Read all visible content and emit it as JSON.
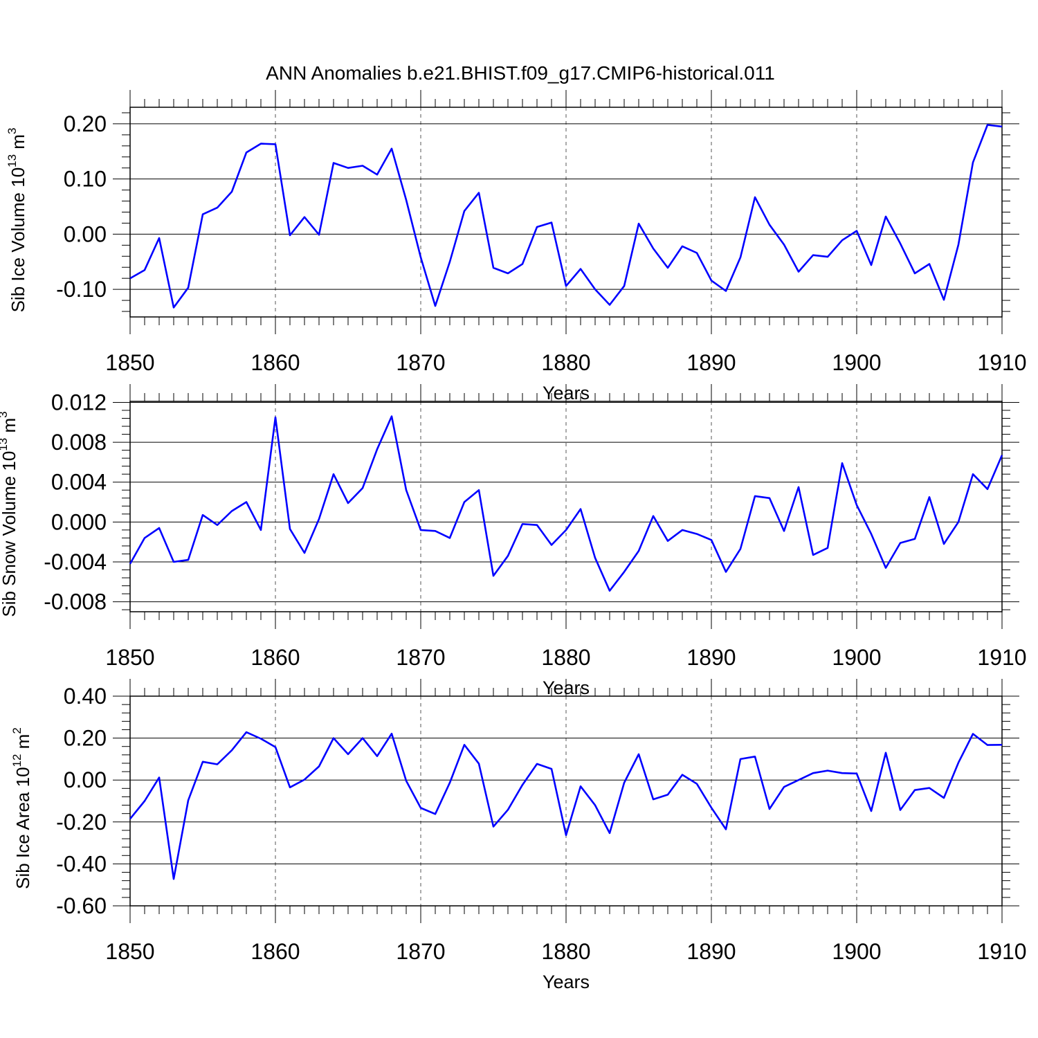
{
  "title": "ANN Anomalies b.e21.BHIST.f09_g17.CMIP6-historical.011",
  "chart_data": [
    {
      "type": "line",
      "ylabel": "Sib Ice Volume 10",
      "ylabel_exp": "13",
      "ylabel_unit": " m",
      "ylabel_unit_exp": "3",
      "xlabel": "Years",
      "xlim": [
        1850,
        1910
      ],
      "ylim": [
        -0.15,
        0.23
      ],
      "yticks": [
        -0.1,
        0.0,
        0.1,
        0.2
      ],
      "ytick_labels": [
        "-0.10",
        "0.00",
        "0.10",
        "0.20"
      ],
      "xticks": [
        1850,
        1860,
        1870,
        1880,
        1890,
        1900,
        1910
      ],
      "xtick_labels": [
        "1850",
        "1860",
        "1870",
        "1880",
        "1890",
        "1900",
        "1910"
      ],
      "grid": "dashed vertical at major x ticks",
      "color": "#0000ff",
      "x": [
        1850,
        1851,
        1852,
        1853,
        1854,
        1855,
        1856,
        1857,
        1858,
        1859,
        1860,
        1861,
        1862,
        1863,
        1864,
        1865,
        1866,
        1867,
        1868,
        1869,
        1870,
        1871,
        1872,
        1873,
        1874,
        1875,
        1876,
        1877,
        1878,
        1879,
        1880,
        1881,
        1882,
        1883,
        1884,
        1885,
        1886,
        1887,
        1888,
        1889,
        1890,
        1891,
        1892,
        1893,
        1894,
        1895,
        1896,
        1897,
        1898,
        1899,
        1900,
        1901,
        1902,
        1903,
        1904,
        1905,
        1906,
        1907,
        1908,
        1909,
        1910
      ],
      "values": [
        -0.08,
        -0.065,
        -0.007,
        -0.133,
        -0.097,
        0.036,
        0.048,
        0.077,
        0.148,
        0.164,
        0.163,
        -0.002,
        0.031,
        -0.001,
        0.129,
        0.12,
        0.124,
        0.108,
        0.155,
        0.062,
        -0.042,
        -0.13,
        -0.05,
        0.042,
        0.075,
        -0.061,
        -0.071,
        -0.054,
        0.013,
        0.021,
        -0.094,
        -0.063,
        -0.1,
        -0.128,
        -0.094,
        0.019,
        -0.026,
        -0.061,
        -0.022,
        -0.034,
        -0.084,
        -0.103,
        -0.042,
        0.067,
        0.017,
        -0.019,
        -0.068,
        -0.038,
        -0.041,
        -0.011,
        0.006,
        -0.056,
        0.032,
        -0.017,
        -0.071,
        -0.054,
        -0.119,
        -0.019,
        0.13,
        0.198,
        0.195
      ]
    },
    {
      "type": "line",
      "ylabel": "Sib Snow Volume 10",
      "ylabel_exp": "13",
      "ylabel_unit": " m",
      "ylabel_unit_exp": "3",
      "xlabel": "Years",
      "xlim": [
        1850,
        1910
      ],
      "ylim": [
        -0.009,
        0.0121
      ],
      "yticks": [
        -0.008,
        -0.004,
        0.0,
        0.004,
        0.008,
        0.012
      ],
      "ytick_labels": [
        "-0.008",
        "-0.004",
        "0.000",
        "0.004",
        "0.008",
        "0.012"
      ],
      "xticks": [
        1850,
        1860,
        1870,
        1880,
        1890,
        1900,
        1910
      ],
      "xtick_labels": [
        "1850",
        "1860",
        "1870",
        "1880",
        "1890",
        "1900",
        "1910"
      ],
      "grid": "dashed vertical at major x ticks",
      "color": "#0000ff",
      "x": [
        1850,
        1851,
        1852,
        1853,
        1854,
        1855,
        1856,
        1857,
        1858,
        1859,
        1860,
        1861,
        1862,
        1863,
        1864,
        1865,
        1866,
        1867,
        1868,
        1869,
        1870,
        1871,
        1872,
        1873,
        1874,
        1875,
        1876,
        1877,
        1878,
        1879,
        1880,
        1881,
        1882,
        1883,
        1884,
        1885,
        1886,
        1887,
        1888,
        1889,
        1890,
        1891,
        1892,
        1893,
        1894,
        1895,
        1896,
        1897,
        1898,
        1899,
        1900,
        1901,
        1902,
        1903,
        1904,
        1905,
        1906,
        1907,
        1908,
        1909,
        1910
      ],
      "values": [
        -0.0042,
        -0.0016,
        -0.0006,
        -0.004,
        -0.0038,
        0.0007,
        -0.0003,
        0.0011,
        0.002,
        -0.0008,
        0.0105,
        -0.0007,
        -0.0031,
        0.0003,
        0.0048,
        0.0019,
        0.0034,
        0.0073,
        0.0106,
        0.0032,
        -0.0008,
        -0.0009,
        -0.0016,
        0.002,
        0.0032,
        -0.0054,
        -0.0034,
        -0.0002,
        -0.0003,
        -0.0023,
        -0.0008,
        0.0013,
        -0.0036,
        -0.0069,
        -0.005,
        -0.0029,
        0.0006,
        -0.0019,
        -0.0008,
        -0.0012,
        -0.0018,
        -0.005,
        -0.0027,
        0.0026,
        0.0024,
        -0.0009,
        0.0035,
        -0.0033,
        -0.0026,
        0.0059,
        0.0017,
        -0.0012,
        -0.0046,
        -0.0021,
        -0.0017,
        0.0025,
        -0.0022,
        0.0,
        0.0048,
        0.0033,
        0.0067
      ]
    },
    {
      "type": "line",
      "ylabel": "Sib Ice Area 10",
      "ylabel_exp": "12",
      "ylabel_unit": " m",
      "ylabel_unit_exp": "2",
      "xlabel": "Years",
      "xlim": [
        1850,
        1910
      ],
      "ylim": [
        -0.6,
        0.4
      ],
      "yticks": [
        -0.6,
        -0.4,
        -0.2,
        0.0,
        0.2,
        0.4
      ],
      "ytick_labels": [
        "-0.60",
        "-0.40",
        "-0.20",
        "0.00",
        "0.20",
        "0.40"
      ],
      "xticks": [
        1850,
        1860,
        1870,
        1880,
        1890,
        1900,
        1910
      ],
      "xtick_labels": [
        "1850",
        "1860",
        "1870",
        "1880",
        "1890",
        "1900",
        "1910"
      ],
      "grid": "dashed vertical at major x ticks",
      "color": "#0000ff",
      "x": [
        1850,
        1851,
        1852,
        1853,
        1854,
        1855,
        1856,
        1857,
        1858,
        1859,
        1860,
        1861,
        1862,
        1863,
        1864,
        1865,
        1866,
        1867,
        1868,
        1869,
        1870,
        1871,
        1872,
        1873,
        1874,
        1875,
        1876,
        1877,
        1878,
        1879,
        1880,
        1881,
        1882,
        1883,
        1884,
        1885,
        1886,
        1887,
        1888,
        1889,
        1890,
        1891,
        1892,
        1893,
        1894,
        1895,
        1896,
        1897,
        1898,
        1899,
        1900,
        1901,
        1902,
        1903,
        1904,
        1905,
        1906,
        1907,
        1908,
        1909,
        1910
      ],
      "values": [
        -0.185,
        -0.1,
        0.012,
        -0.472,
        -0.097,
        0.087,
        0.075,
        0.142,
        0.228,
        0.197,
        0.157,
        -0.035,
        0.002,
        0.065,
        0.2,
        0.123,
        0.2,
        0.114,
        0.221,
        -0.004,
        -0.133,
        -0.162,
        -0.013,
        0.168,
        0.078,
        -0.222,
        -0.142,
        -0.023,
        0.077,
        0.053,
        -0.263,
        -0.03,
        -0.12,
        -0.253,
        -0.013,
        0.123,
        -0.092,
        -0.07,
        0.025,
        -0.018,
        -0.132,
        -0.235,
        0.1,
        0.112,
        -0.138,
        -0.033,
        0.0,
        0.033,
        0.045,
        0.033,
        0.031,
        -0.148,
        0.13,
        -0.143,
        -0.048,
        -0.038,
        -0.085,
        0.083,
        0.22,
        0.167,
        0.168
      ]
    }
  ]
}
